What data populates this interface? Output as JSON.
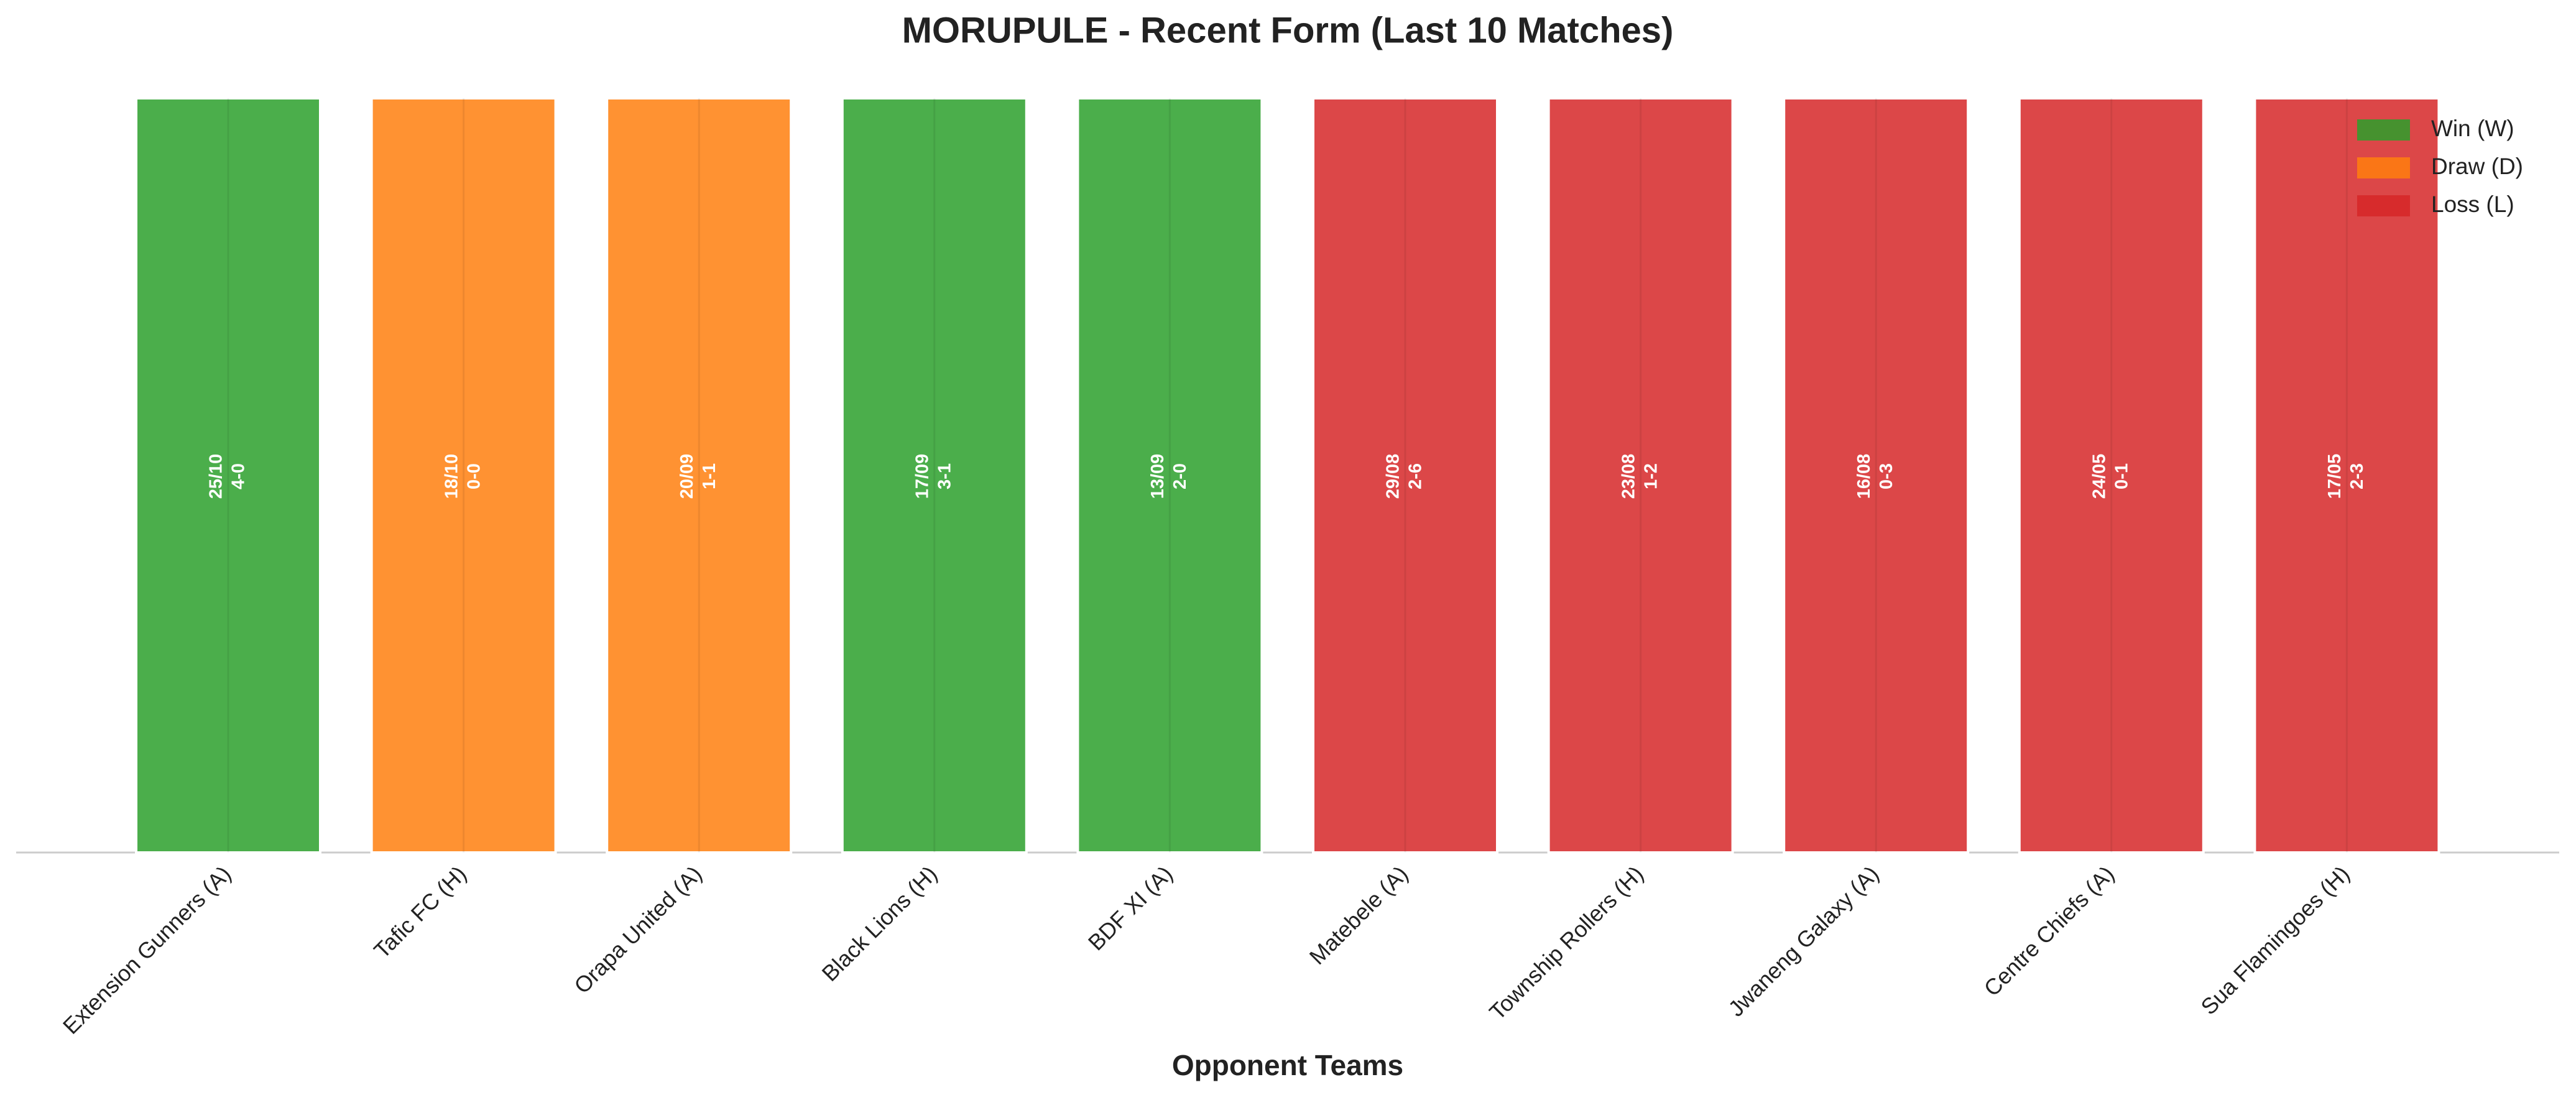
{
  "chart_data": {
    "type": "bar",
    "title": "MORUPULE - Recent Form (Last 10 Matches)",
    "x_label": "Opponent Teams",
    "categories": [
      "Extension Gunners (A)",
      "Tafic FC (H)",
      "Orapa United (A)",
      "Black Lions (H)",
      "BDF XI (A)",
      "Matebele (A)",
      "Township Rollers (H)",
      "Jwaneng Galaxy (A)",
      "Centre Chiefs (A)",
      "Sua Flamingoes (H)"
    ],
    "dates": [
      "25/10",
      "18/10",
      "20/09",
      "17/09",
      "13/09",
      "29/08",
      "23/08",
      "16/08",
      "24/05",
      "17/05"
    ],
    "scores": [
      "4-0",
      "0-0",
      "1-1",
      "3-1",
      "2-0",
      "2-6",
      "1-2",
      "0-3",
      "0-1",
      "2-3"
    ],
    "series": [
      {
        "name": "Win (W)",
        "color": "#2ca02c",
        "values": [
          1,
          null,
          null,
          1,
          1,
          null,
          null,
          null,
          null,
          null
        ]
      },
      {
        "name": "Draw (D)",
        "color": "#ff7f0e",
        "values": [
          null,
          1,
          1,
          null,
          null,
          null,
          null,
          null,
          null,
          null
        ]
      },
      {
        "name": "Loss (L)",
        "color": "#d62728",
        "values": [
          null,
          null,
          null,
          null,
          null,
          1,
          1,
          1,
          1,
          1
        ]
      }
    ],
    "ylim": [
      0,
      1
    ],
    "legend": "upper right"
  }
}
